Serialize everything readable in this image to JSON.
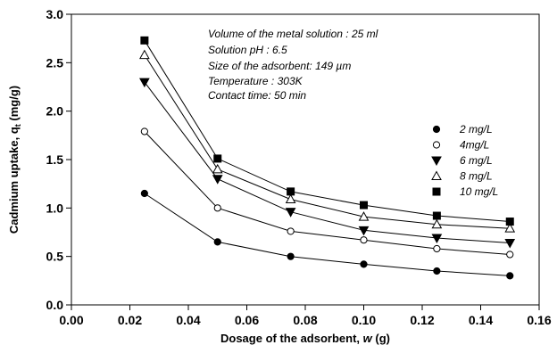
{
  "chart_data": {
    "type": "line",
    "xlabel": "Dosage of the adsorbent, w (g)",
    "xlabel_parts": {
      "main": "Dosage of the adsorbent, ",
      "var": "w",
      "unit": " (g)"
    },
    "ylabel": "Cadmium uptake, qt (mg/g)",
    "ylabel_parts": {
      "main": "Cadmium uptake, q",
      "sub": "t",
      "unit": " (mg/g)"
    },
    "xlim": [
      0.0,
      0.16
    ],
    "ylim": [
      0.0,
      3.0
    ],
    "x_ticks": [
      "0.00",
      "0.02",
      "0.04",
      "0.06",
      "0.08",
      "0.10",
      "0.12",
      "0.14",
      "0.16"
    ],
    "y_ticks": [
      "0.0",
      "0.5",
      "1.0",
      "1.5",
      "2.0",
      "2.5",
      "3.0"
    ],
    "grid": false,
    "legend_position": "right",
    "annotations": [
      "Volume of the metal solution : 25 ml",
      "Solution pH : 6.5",
      "Size of the adsorbent: 149 µm",
      "Temperature : 303K",
      "Contact time: 50 min"
    ],
    "x": [
      0.025,
      0.05,
      0.075,
      0.1,
      0.125,
      0.15
    ],
    "series": [
      {
        "name": "2 mg/L",
        "marker": "filled-circle",
        "values": [
          1.15,
          0.65,
          0.5,
          0.42,
          0.35,
          0.3
        ]
      },
      {
        "name": "4mg/L",
        "marker": "open-circle",
        "values": [
          1.79,
          1.0,
          0.76,
          0.67,
          0.58,
          0.52
        ]
      },
      {
        "name": "6 mg/L",
        "marker": "filled-triangle-down",
        "values": [
          2.3,
          1.3,
          0.96,
          0.77,
          0.69,
          0.64
        ]
      },
      {
        "name": "8 mg/L",
        "marker": "open-triangle-up",
        "values": [
          2.58,
          1.4,
          1.09,
          0.91,
          0.83,
          0.79
        ]
      },
      {
        "name": "10 mg/L",
        "marker": "filled-square",
        "values": [
          2.73,
          1.51,
          1.17,
          1.03,
          0.92,
          0.86
        ]
      }
    ]
  }
}
